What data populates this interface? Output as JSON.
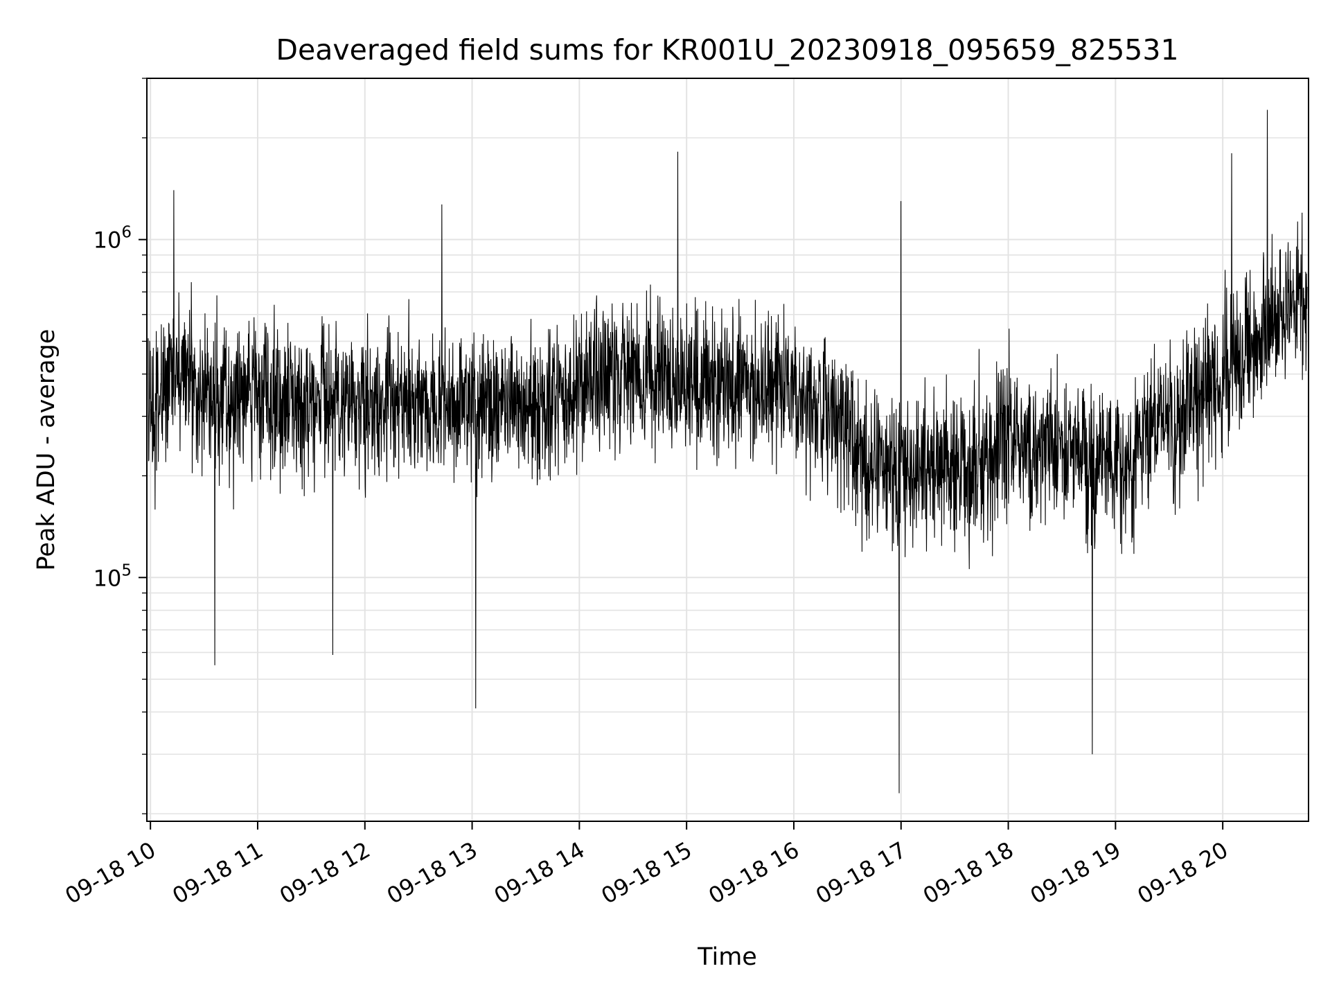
{
  "chart_data": {
    "type": "line",
    "title": "Deaveraged field sums for KR001U_20230918_095659_825531",
    "xlabel": "Time",
    "ylabel": "Peak ADU - average",
    "x_range": [
      "2023-09-18T09:58",
      "2023-09-18T20:48"
    ],
    "y_scale": "log",
    "ylim": [
      19000,
      3000000
    ],
    "grid": true,
    "legend": "none",
    "line_color": "#000000",
    "x_ticks": [
      {
        "t": "2023-09-18T10:00",
        "label": "09-18 10"
      },
      {
        "t": "2023-09-18T11:00",
        "label": "09-18 11"
      },
      {
        "t": "2023-09-18T12:00",
        "label": "09-18 12"
      },
      {
        "t": "2023-09-18T13:00",
        "label": "09-18 13"
      },
      {
        "t": "2023-09-18T14:00",
        "label": "09-18 14"
      },
      {
        "t": "2023-09-18T15:00",
        "label": "09-18 15"
      },
      {
        "t": "2023-09-18T16:00",
        "label": "09-18 16"
      },
      {
        "t": "2023-09-18T17:00",
        "label": "09-18 17"
      },
      {
        "t": "2023-09-18T18:00",
        "label": "09-18 18"
      },
      {
        "t": "2023-09-18T19:00",
        "label": "09-18 19"
      },
      {
        "t": "2023-09-18T20:00",
        "label": "09-18 20"
      }
    ],
    "y_ticks": [
      {
        "value": 100000,
        "base": "10",
        "exp": "5"
      },
      {
        "value": 1000000,
        "base": "10",
        "exp": "6"
      }
    ],
    "series": [
      {
        "values": [
          {
            "t": "2023-09-18T09:58",
            "y": 300000
          },
          {
            "t": "2023-09-18T10:05",
            "y": 380000
          },
          {
            "t": "2023-09-18T10:15",
            "y": 420000
          },
          {
            "t": "2023-09-18T10:30",
            "y": 350000
          },
          {
            "t": "2023-09-18T10:45",
            "y": 330000
          },
          {
            "t": "2023-09-18T11:00",
            "y": 360000
          },
          {
            "t": "2023-09-18T11:20",
            "y": 320000
          },
          {
            "t": "2023-09-18T11:40",
            "y": 340000
          },
          {
            "t": "2023-09-18T12:00",
            "y": 320000
          },
          {
            "t": "2023-09-18T12:30",
            "y": 340000
          },
          {
            "t": "2023-09-18T13:00",
            "y": 310000
          },
          {
            "t": "2023-09-18T13:30",
            "y": 320000
          },
          {
            "t": "2023-09-18T14:00",
            "y": 380000
          },
          {
            "t": "2023-09-18T14:30",
            "y": 400000
          },
          {
            "t": "2023-09-18T15:00",
            "y": 380000
          },
          {
            "t": "2023-09-18T15:30",
            "y": 360000
          },
          {
            "t": "2023-09-18T16:00",
            "y": 350000
          },
          {
            "t": "2023-09-18T16:20",
            "y": 300000
          },
          {
            "t": "2023-09-18T16:40",
            "y": 220000
          },
          {
            "t": "2023-09-18T17:00",
            "y": 200000
          },
          {
            "t": "2023-09-18T17:20",
            "y": 230000
          },
          {
            "t": "2023-09-18T17:40",
            "y": 210000
          },
          {
            "t": "2023-09-18T18:00",
            "y": 260000
          },
          {
            "t": "2023-09-18T18:30",
            "y": 230000
          },
          {
            "t": "2023-09-18T19:00",
            "y": 210000
          },
          {
            "t": "2023-09-18T19:30",
            "y": 300000
          },
          {
            "t": "2023-09-18T20:00",
            "y": 380000
          },
          {
            "t": "2023-09-18T20:30",
            "y": 600000
          },
          {
            "t": "2023-09-18T20:48",
            "y": 650000
          }
        ],
        "extremes": [
          {
            "t": "2023-09-18T10:13",
            "y": 1400000
          },
          {
            "t": "2023-09-18T10:36",
            "y": 55000
          },
          {
            "t": "2023-09-18T11:42",
            "y": 59000
          },
          {
            "t": "2023-09-18T12:43",
            "y": 1270000
          },
          {
            "t": "2023-09-18T13:02",
            "y": 41000
          },
          {
            "t": "2023-09-18T14:55",
            "y": 1820000
          },
          {
            "t": "2023-09-18T16:59",
            "y": 23000
          },
          {
            "t": "2023-09-18T17:00",
            "y": 1300000
          },
          {
            "t": "2023-09-18T18:47",
            "y": 30000
          },
          {
            "t": "2023-09-18T20:05",
            "y": 1800000
          },
          {
            "t": "2023-09-18T20:25",
            "y": 2420000
          }
        ]
      }
    ]
  }
}
